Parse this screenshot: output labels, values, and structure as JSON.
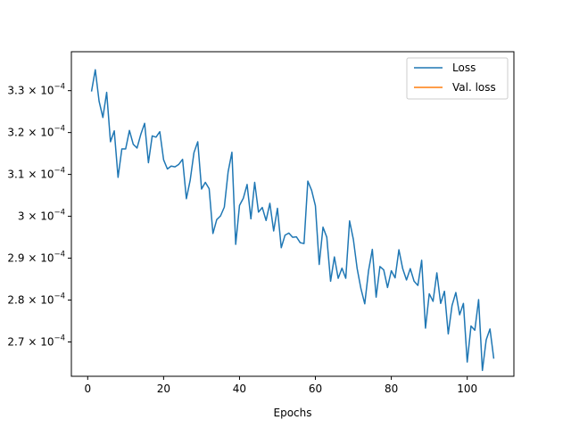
{
  "chart_data": {
    "type": "line",
    "title": "",
    "xlabel": "Epochs",
    "ylabel": "",
    "xlim": [
      -4.3,
      112.3
    ],
    "ylim": [
      0.0002618,
      0.0003393
    ],
    "xticks": [
      0,
      20,
      40,
      60,
      80,
      100
    ],
    "yticks": [
      {
        "value": 0.00027,
        "mantissa": "2.7",
        "base": "10",
        "exp": "−4"
      },
      {
        "value": 0.00028,
        "mantissa": "2.8",
        "base": "10",
        "exp": "−4"
      },
      {
        "value": 0.00029,
        "mantissa": "2.9",
        "base": "10",
        "exp": "−4"
      },
      {
        "value": 0.0003,
        "mantissa": "3",
        "base": "10",
        "exp": "−4"
      },
      {
        "value": 0.00031,
        "mantissa": "3.1",
        "base": "10",
        "exp": "−4"
      },
      {
        "value": 0.00032,
        "mantissa": "3.2",
        "base": "10",
        "exp": "−4"
      },
      {
        "value": 0.00033,
        "mantissa": "3.3",
        "base": "10",
        "exp": "−4"
      }
    ],
    "grid": false,
    "legend_position": "top-right",
    "series": [
      {
        "name": "Loss",
        "color": "#1f77b4",
        "x": [
          1,
          2,
          3,
          4,
          5,
          6,
          7,
          8,
          9,
          10,
          11,
          12,
          13,
          14,
          15,
          16,
          17,
          18,
          19,
          20,
          21,
          22,
          23,
          24,
          25,
          26,
          27,
          28,
          29,
          30,
          31,
          32,
          33,
          34,
          35,
          36,
          37,
          38,
          39,
          40,
          41,
          42,
          43,
          44,
          45,
          46,
          47,
          48,
          49,
          50,
          51,
          52,
          53,
          54,
          55,
          56,
          57,
          58,
          59,
          60,
          61,
          62,
          63,
          64,
          65,
          66,
          67,
          68,
          69,
          70,
          71,
          72,
          73,
          74,
          75,
          76,
          77,
          78,
          79,
          80,
          81,
          82,
          83,
          84,
          85,
          86,
          87,
          88,
          89,
          90,
          91,
          92,
          93,
          94,
          95,
          96,
          97,
          98,
          99,
          100,
          101,
          102,
          103,
          104,
          105,
          106,
          107
        ],
        "y": [
          0.0003298,
          0.000335,
          0.0003275,
          0.0003236,
          0.0003296,
          0.0003178,
          0.0003204,
          0.0003093,
          0.0003161,
          0.0003161,
          0.0003205,
          0.0003172,
          0.0003163,
          0.0003196,
          0.0003222,
          0.0003128,
          0.0003192,
          0.0003189,
          0.0003202,
          0.0003135,
          0.0003113,
          0.000312,
          0.0003118,
          0.0003124,
          0.0003136,
          0.0003042,
          0.0003086,
          0.0003152,
          0.0003178,
          0.0003065,
          0.0003081,
          0.0003066,
          0.0002959,
          0.0002992,
          0.0003001,
          0.0003022,
          0.0003106,
          0.0003153,
          0.0002933,
          0.0003026,
          0.0003043,
          0.0003076,
          0.0002994,
          0.0003081,
          0.000301,
          0.0003021,
          0.000299,
          0.0003031,
          0.0002965,
          0.0003019,
          0.0002925,
          0.0002955,
          0.000296,
          0.000295,
          0.0002951,
          0.0002937,
          0.0002935,
          0.0003084,
          0.0003062,
          0.0003025,
          0.0002885,
          0.0002974,
          0.000295,
          0.0002845,
          0.0002903,
          0.0002852,
          0.0002876,
          0.0002852,
          0.0002989,
          0.0002945,
          0.0002875,
          0.0002827,
          0.0002791,
          0.000287,
          0.0002921,
          0.0002807,
          0.000288,
          0.0002872,
          0.000283,
          0.000287,
          0.0002853,
          0.000292,
          0.0002875,
          0.0002848,
          0.0002875,
          0.0002845,
          0.0002835,
          0.0002895,
          0.0002733,
          0.0002815,
          0.0002797,
          0.0002865,
          0.0002792,
          0.0002821,
          0.0002719,
          0.0002787,
          0.0002818,
          0.0002765,
          0.0002792,
          0.0002652,
          0.0002738,
          0.0002728,
          0.0002801,
          0.0002632,
          0.0002705,
          0.0002731,
          0.000266
        ]
      },
      {
        "name": "Val. loss",
        "color": "#ff7f0e",
        "x": [],
        "y": []
      }
    ]
  }
}
